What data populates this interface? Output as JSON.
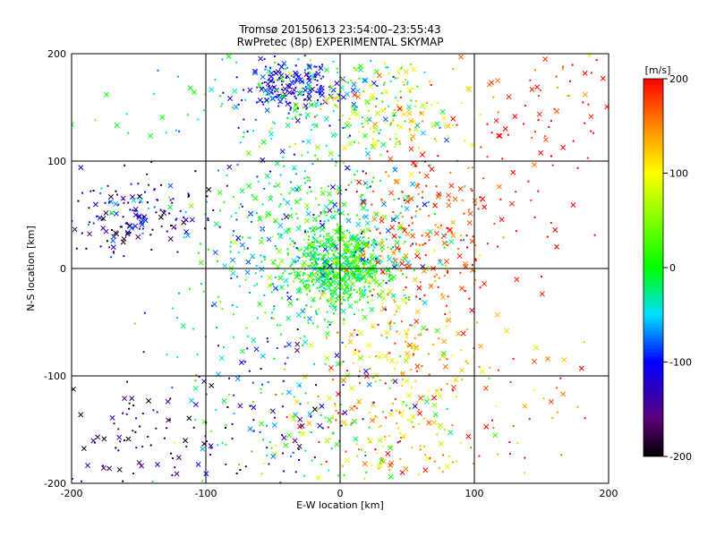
{
  "chart_data": {
    "type": "scatter",
    "title": "Tromsø 20150613 23:54:00–23:55:43",
    "subtitle": "RwPretec (8p) EXPERIMENTAL SKYMAP",
    "xlabel": "E-W location [km]",
    "ylabel": "N-S location [km]",
    "xlim": [
      -200,
      200
    ],
    "ylim": [
      -200,
      200
    ],
    "xticks": [
      "-200",
      "-100",
      "0",
      "100",
      "200"
    ],
    "yticks": [
      "-200",
      "-100",
      "0",
      "100",
      "200"
    ],
    "grid": true,
    "markers": [
      "x",
      "dot"
    ],
    "colorbar": {
      "label": "[m/s]",
      "range": [
        -200,
        200
      ],
      "ticks": [
        "200",
        "100",
        "0",
        "-100",
        "-200"
      ],
      "colormap": "rainbow-black"
    },
    "clusters": [
      {
        "x": 0,
        "y": 0,
        "sx": 18,
        "sy": 20,
        "n": 650,
        "v": 5,
        "vs": 35
      },
      {
        "x": -20,
        "y": 30,
        "sx": 45,
        "sy": 45,
        "n": 500,
        "v": -25,
        "vs": 45
      },
      {
        "x": -35,
        "y": 170,
        "sx": 18,
        "sy": 12,
        "n": 180,
        "v": -115,
        "vs": 25
      },
      {
        "x": -5,
        "y": 160,
        "sx": 40,
        "sy": 25,
        "n": 160,
        "v": -20,
        "vs": 45
      },
      {
        "x": 40,
        "y": 150,
        "sx": 30,
        "sy": 25,
        "n": 130,
        "v": 100,
        "vs": 35
      },
      {
        "x": 140,
        "y": 145,
        "sx": 35,
        "sy": 30,
        "n": 55,
        "v": 190,
        "vs": 20
      },
      {
        "x": 65,
        "y": 45,
        "sx": 28,
        "sy": 40,
        "n": 200,
        "v": 175,
        "vs": 25
      },
      {
        "x": 50,
        "y": -60,
        "sx": 30,
        "sy": 35,
        "n": 160,
        "v": 130,
        "vs": 45
      },
      {
        "x": 35,
        "y": -150,
        "sx": 40,
        "sy": 28,
        "n": 180,
        "v": 120,
        "vs": 60
      },
      {
        "x": -150,
        "y": 50,
        "sx": 30,
        "sy": 18,
        "n": 160,
        "v": -140,
        "vs": 45
      },
      {
        "x": -100,
        "y": 150,
        "sx": 50,
        "sy": 30,
        "n": 40,
        "v": -20,
        "vs": 40
      },
      {
        "x": -40,
        "y": -150,
        "sx": 50,
        "sy": 35,
        "n": 150,
        "v": -60,
        "vs": 80
      },
      {
        "x": -150,
        "y": -160,
        "sx": 35,
        "sy": 25,
        "n": 90,
        "v": -170,
        "vs": 30
      },
      {
        "x": -60,
        "y": -70,
        "sx": 40,
        "sy": 30,
        "n": 60,
        "v": -50,
        "vs": 60
      },
      {
        "x": 130,
        "y": -140,
        "sx": 35,
        "sy": 35,
        "n": 40,
        "v": 160,
        "vs": 40
      },
      {
        "x": 150,
        "y": 40,
        "sx": 30,
        "sy": 60,
        "n": 25,
        "v": 200,
        "vs": 10
      },
      {
        "x": 175,
        "y": 175,
        "sx": 15,
        "sy": 20,
        "n": 14,
        "v": 180,
        "vs": 40
      }
    ]
  }
}
